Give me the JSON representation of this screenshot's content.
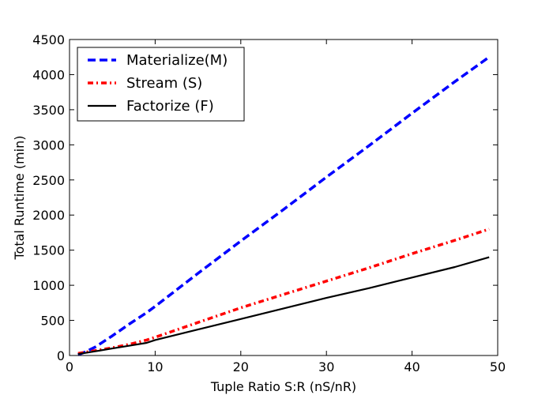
{
  "chart_data": {
    "type": "line",
    "title": "",
    "xlabel": "Tuple Ratio S:R (nS/nR)",
    "ylabel": "Total Runtime (min)",
    "xlim": [
      0,
      50
    ],
    "ylim": [
      0,
      4500
    ],
    "xticks": [
      "0",
      "10",
      "20",
      "30",
      "40",
      "50"
    ],
    "yticks": [
      "0",
      "500",
      "1000",
      "1500",
      "2000",
      "2500",
      "3000",
      "3500",
      "4000",
      "4500"
    ],
    "grid": false,
    "legend_position": "top-left",
    "series": [
      {
        "name": "Materialize(M)",
        "color": "#0000ff",
        "line_style": "dashed",
        "x": [
          1,
          2,
          3,
          5,
          7,
          9,
          10,
          15,
          20,
          25,
          30,
          35,
          40,
          45,
          49
        ],
        "y": [
          10,
          60,
          120,
          280,
          450,
          610,
          700,
          1170,
          1630,
          2080,
          2540,
          2990,
          3450,
          3900,
          4250
        ]
      },
      {
        "name": "Stream (S)",
        "color": "#ff0000",
        "line_style": "dash-dot",
        "x": [
          1,
          2,
          3,
          5,
          7,
          9,
          10,
          15,
          20,
          25,
          30,
          35,
          40,
          45,
          49
        ],
        "y": [
          30,
          50,
          70,
          110,
          160,
          220,
          260,
          470,
          680,
          870,
          1060,
          1250,
          1450,
          1640,
          1800
        ]
      },
      {
        "name": "Factorize (F)",
        "color": "#000000",
        "line_style": "solid",
        "x": [
          1,
          2,
          3,
          5,
          7,
          9,
          10,
          15,
          20,
          25,
          30,
          35,
          40,
          45,
          49
        ],
        "y": [
          20,
          40,
          60,
          100,
          140,
          180,
          220,
          370,
          520,
          670,
          820,
          960,
          1110,
          1260,
          1400
        ]
      }
    ]
  }
}
